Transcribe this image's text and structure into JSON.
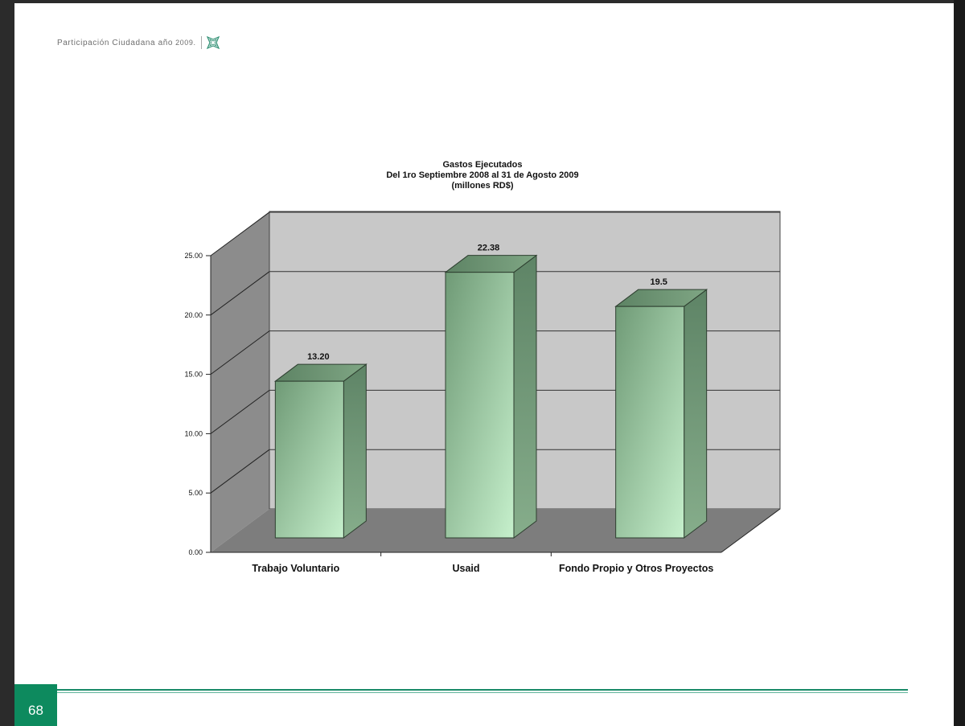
{
  "header": {
    "title": "Participación Ciudadana año",
    "year": "2009."
  },
  "footer": {
    "page_number": "68"
  },
  "colors": {
    "brand_green": "#0d8a5e",
    "bar_front": "#a9dcb0",
    "bar_side": "#6b8f72",
    "wall": "#c8c8c8"
  },
  "chart_data": {
    "type": "bar",
    "title_lines": [
      "Gastos Ejecutados",
      "Del 1ro Septiembre 2008 al 31 de Agosto 2009",
      "(millones RD$)"
    ],
    "categories": [
      "Trabajo Voluntario",
      "Usaid",
      "Fondo Propio y Otros Proyectos"
    ],
    "values": [
      13.2,
      22.38,
      19.5
    ],
    "data_labels": [
      "13.20",
      "22.38",
      "19.5"
    ],
    "y_ticks": [
      "0.00",
      "5.00",
      "10.00",
      "15.00",
      "20.00",
      "25.00"
    ],
    "ylim": [
      0,
      25
    ],
    "grid": true,
    "three_d": true
  }
}
